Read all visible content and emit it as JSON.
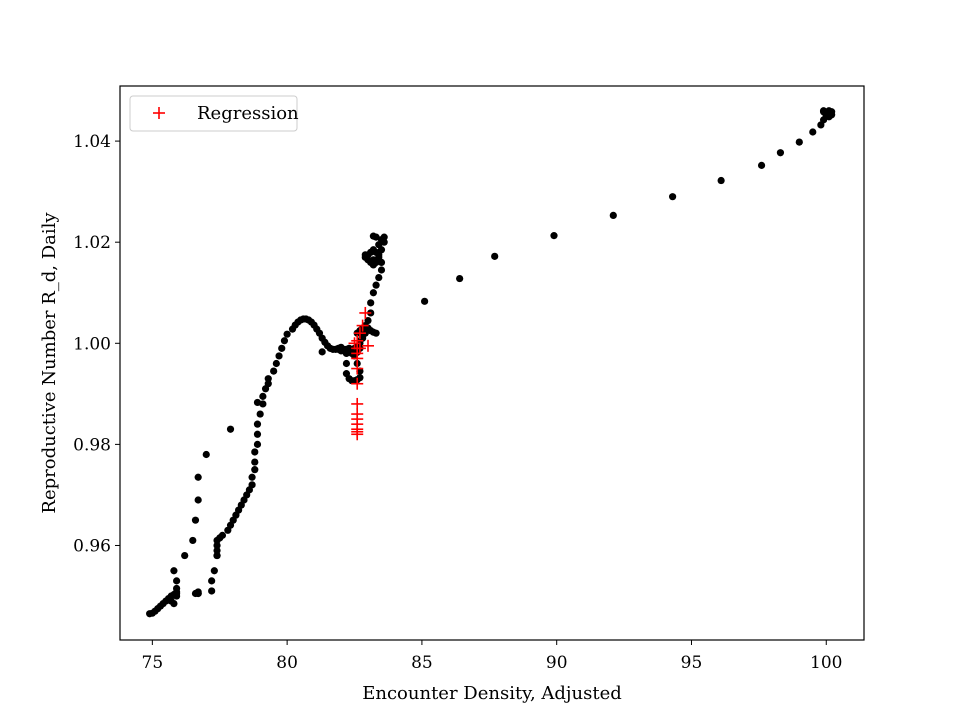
{
  "chart_data": {
    "type": "scatter",
    "title": "",
    "xlabel": "Encounter Density, Adjusted",
    "ylabel": "Reproductive Number R_d, Daily",
    "xlim": [
      73.8,
      101.4
    ],
    "ylim": [
      0.9413,
      1.0509
    ],
    "xticks": [
      75,
      80,
      85,
      90,
      95,
      100
    ],
    "xtick_labels": [
      "75",
      "80",
      "85",
      "90",
      "95",
      "100"
    ],
    "yticks": [
      0.96,
      0.98,
      1.0,
      1.02,
      1.04
    ],
    "ytick_labels": [
      "0.96",
      "0.98",
      "1.00",
      "1.02",
      "1.04"
    ],
    "grid": false,
    "legend": {
      "position": "top-left",
      "entries": [
        "Regression"
      ]
    },
    "colors": {
      "data": "#000000",
      "regression": "#ff0000",
      "axes": "#000000"
    },
    "series": [
      {
        "marker": "dot",
        "x": [
          74.9,
          75.0,
          75.1,
          75.2,
          75.3,
          75.4,
          75.5,
          75.6,
          75.7,
          75.8,
          75.9,
          75.9,
          75.9,
          75.8,
          75.7,
          75.9,
          75.9,
          75.8,
          76.2,
          76.5,
          76.6,
          76.7,
          76.7,
          77.0,
          77.2,
          77.3,
          77.4,
          77.4,
          77.4,
          77.4,
          77.4,
          77.5,
          77.6,
          77.8,
          77.9,
          78.0,
          78.1,
          78.2,
          78.3,
          78.4,
          78.5,
          78.6,
          78.7,
          78.7,
          78.8,
          78.8,
          78.8,
          78.9,
          78.9,
          78.9,
          79.0,
          79.1,
          79.1,
          79.2,
          79.3,
          79.3,
          79.5,
          79.6,
          79.7,
          79.8,
          79.9,
          80.0,
          80.2,
          80.3,
          80.4,
          80.5,
          80.6,
          80.7,
          80.8,
          80.9,
          81.0,
          81.1,
          81.2,
          81.3,
          81.4,
          81.5,
          81.6,
          81.7,
          81.8,
          81.9,
          82.0,
          82.1,
          82.2,
          82.2,
          82.2,
          82.3,
          82.4,
          82.5,
          82.6,
          82.7,
          82.7,
          82.6,
          82.5,
          82.4,
          82.3,
          82.2,
          82.1,
          82.0,
          81.9,
          81.3,
          82.6,
          82.7,
          82.8,
          82.9,
          83.0,
          83.1,
          83.2,
          83.3,
          82.7,
          82.8,
          82.9,
          83.0,
          83.0,
          83.1,
          83.1,
          83.2,
          83.3,
          83.4,
          83.5,
          83.5,
          83.4,
          83.3,
          83.2,
          83.1,
          83.0,
          82.9,
          83.4,
          83.5,
          83.6,
          83.6,
          83.5,
          83.4,
          83.2,
          83.3,
          83.2,
          83.1,
          83.0,
          82.9,
          82.8,
          82.7,
          82.6,
          82.5,
          82.4,
          82.4,
          82.5,
          82.6,
          82.7,
          83.2,
          83.3,
          76.7,
          76.6,
          76.7,
          76.7,
          77.2,
          77.9,
          78.9,
          85.1,
          86.4,
          87.7,
          89.9,
          92.1,
          94.3,
          96.1,
          97.6,
          98.3,
          99.0,
          99.5,
          99.8,
          99.9,
          100.0,
          100.1,
          100.1,
          100.2,
          100.2,
          100.1,
          100.0,
          99.9,
          99.9
        ],
        "y": [
          0.9465,
          0.9466,
          0.947,
          0.9475,
          0.948,
          0.9485,
          0.949,
          0.9495,
          0.95,
          0.9503,
          0.9508,
          0.9515,
          0.953,
          0.955,
          0.949,
          0.95,
          0.9505,
          0.9485,
          0.958,
          0.961,
          0.965,
          0.969,
          0.9735,
          0.978,
          0.953,
          0.955,
          0.958,
          0.959,
          0.96,
          0.961,
          0.958,
          0.9615,
          0.962,
          0.963,
          0.964,
          0.965,
          0.966,
          0.967,
          0.968,
          0.969,
          0.97,
          0.971,
          0.972,
          0.9735,
          0.975,
          0.9765,
          0.9785,
          0.98,
          0.982,
          0.984,
          0.986,
          0.988,
          0.9895,
          0.991,
          0.992,
          0.993,
          0.9945,
          0.996,
          0.9975,
          0.999,
          1.0005,
          1.0018,
          1.0028,
          1.0036,
          1.0042,
          1.0046,
          1.0048,
          1.0048,
          1.0046,
          1.0042,
          1.0036,
          1.0028,
          1.002,
          1.001,
          1.0002,
          0.9995,
          0.999,
          0.9988,
          0.9988,
          0.999,
          0.9992,
          0.9988,
          0.998,
          0.996,
          0.994,
          0.993,
          0.9926,
          0.9926,
          0.9928,
          0.9932,
          0.9945,
          0.996,
          0.9975,
          0.9985,
          0.999,
          0.9988,
          0.9985,
          0.9985,
          0.9988,
          0.9983,
          1.002,
          1.0025,
          1.003,
          1.0035,
          1.003,
          1.0025,
          1.0022,
          1.002,
          1.0,
          1.001,
          1.002,
          1.003,
          1.0045,
          1.006,
          1.008,
          1.01,
          1.0115,
          1.013,
          1.0145,
          1.016,
          1.0175,
          1.018,
          1.0185,
          1.018,
          1.0175,
          1.017,
          1.0195,
          1.0205,
          1.021,
          1.02,
          1.0185,
          1.017,
          1.0165,
          1.016,
          1.0155,
          1.016,
          1.0165,
          1.0175,
          1.0015,
          1.0005,
          0.9995,
          0.999,
          0.9985,
          0.998,
          0.9978,
          0.9982,
          0.999,
          1.0212,
          1.021,
          0.9505,
          0.9505,
          0.9505,
          0.9508,
          0.951,
          0.983,
          0.9883,
          1.0083,
          1.0128,
          1.0172,
          1.0213,
          1.0253,
          1.029,
          1.0322,
          1.0352,
          1.0377,
          1.0398,
          1.0418,
          1.0432,
          1.0442,
          1.045,
          1.0455,
          1.046,
          1.0458,
          1.0452,
          1.0448,
          1.0452,
          1.0458,
          1.046
        ]
      },
      {
        "name": "Regression",
        "marker": "plus",
        "x": [
          82.6,
          82.6,
          82.6,
          82.6,
          82.6,
          82.6,
          82.6,
          82.6,
          82.6,
          82.6,
          82.6,
          82.6,
          82.7,
          82.8,
          82.9,
          83.0,
          82.5,
          82.6,
          82.7
        ],
        "y": [
          0.982,
          0.9825,
          0.983,
          0.984,
          0.985,
          0.986,
          0.988,
          0.992,
          0.995,
          0.997,
          0.999,
          1.0005,
          1.002,
          1.0035,
          1.006,
          0.9995,
          1.0,
          0.998,
          0.999
        ]
      }
    ]
  }
}
